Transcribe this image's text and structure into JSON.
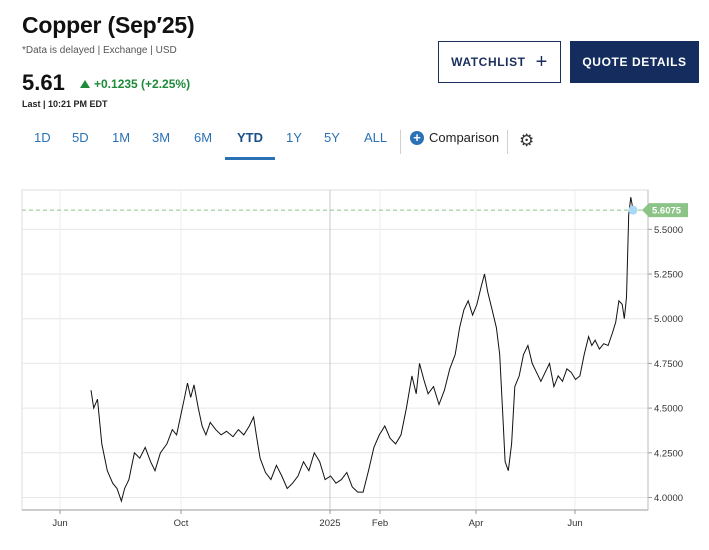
{
  "header": {
    "title": "Copper (Sep′25)",
    "subtitle": "*Data is delayed | Exchange | USD",
    "price": "5.61",
    "change": "+0.1235 (+2.25%)",
    "last_time": "Last | 10:21 PM EDT"
  },
  "buttons": {
    "watchlist": "WATCHLIST",
    "quote_details": "QUOTE DETAILS"
  },
  "tabs": [
    "1D",
    "5D",
    "1M",
    "3M",
    "6M",
    "YTD",
    "1Y",
    "5Y",
    "ALL"
  ],
  "active_tab": "YTD",
  "comparison_label": "Comparison",
  "colors": {
    "up": "#1e8a3a",
    "accent": "#2a72b5",
    "navy": "#142d5e",
    "last_badge": "#8cc487",
    "dot": "#a9d8f5"
  },
  "chart_data": {
    "type": "line",
    "x_ticks": [
      "Jun",
      "Oct",
      "2025",
      "Feb",
      "Apr",
      "Jun"
    ],
    "y_ticks": [
      "4.0000",
      "4.2500",
      "4.5000",
      "4.7500",
      "5.0000",
      "5.2500",
      "5.5000"
    ],
    "ylim": [
      3.93,
      5.72
    ],
    "last_value": "5.6075",
    "grid": true,
    "series": [
      {
        "values": [
          [
            0.0,
            4.6
          ],
          [
            0.005,
            4.5
          ],
          [
            0.012,
            4.55
          ],
          [
            0.02,
            4.3
          ],
          [
            0.03,
            4.15
          ],
          [
            0.04,
            4.08
          ],
          [
            0.048,
            4.05
          ],
          [
            0.056,
            3.98
          ],
          [
            0.062,
            4.05
          ],
          [
            0.07,
            4.1
          ],
          [
            0.08,
            4.25
          ],
          [
            0.09,
            4.22
          ],
          [
            0.1,
            4.28
          ],
          [
            0.11,
            4.2
          ],
          [
            0.118,
            4.15
          ],
          [
            0.128,
            4.25
          ],
          [
            0.14,
            4.3
          ],
          [
            0.15,
            4.38
          ],
          [
            0.158,
            4.35
          ],
          [
            0.165,
            4.45
          ],
          [
            0.172,
            4.55
          ],
          [
            0.178,
            4.64
          ],
          [
            0.184,
            4.56
          ],
          [
            0.19,
            4.63
          ],
          [
            0.198,
            4.5
          ],
          [
            0.205,
            4.4
          ],
          [
            0.212,
            4.35
          ],
          [
            0.22,
            4.42
          ],
          [
            0.23,
            4.38
          ],
          [
            0.24,
            4.35
          ],
          [
            0.25,
            4.37
          ],
          [
            0.262,
            4.34
          ],
          [
            0.272,
            4.38
          ],
          [
            0.282,
            4.35
          ],
          [
            0.292,
            4.4
          ],
          [
            0.3,
            4.45
          ],
          [
            0.305,
            4.35
          ],
          [
            0.312,
            4.22
          ],
          [
            0.322,
            4.14
          ],
          [
            0.332,
            4.1
          ],
          [
            0.342,
            4.18
          ],
          [
            0.352,
            4.12
          ],
          [
            0.362,
            4.05
          ],
          [
            0.372,
            4.08
          ],
          [
            0.382,
            4.12
          ],
          [
            0.392,
            4.2
          ],
          [
            0.402,
            4.15
          ],
          [
            0.412,
            4.25
          ],
          [
            0.422,
            4.2
          ],
          [
            0.432,
            4.1
          ],
          [
            0.442,
            4.12
          ],
          [
            0.452,
            4.08
          ],
          [
            0.462,
            4.1
          ],
          [
            0.472,
            4.14
          ],
          [
            0.482,
            4.06
          ],
          [
            0.492,
            4.03
          ],
          [
            0.502,
            4.03
          ],
          [
            0.512,
            4.15
          ],
          [
            0.522,
            4.28
          ],
          [
            0.532,
            4.35
          ],
          [
            0.542,
            4.4
          ],
          [
            0.552,
            4.33
          ],
          [
            0.562,
            4.3
          ],
          [
            0.572,
            4.35
          ],
          [
            0.582,
            4.5
          ],
          [
            0.592,
            4.68
          ],
          [
            0.6,
            4.58
          ],
          [
            0.606,
            4.75
          ],
          [
            0.614,
            4.66
          ],
          [
            0.622,
            4.58
          ],
          [
            0.632,
            4.62
          ],
          [
            0.642,
            4.52
          ],
          [
            0.652,
            4.6
          ],
          [
            0.662,
            4.72
          ],
          [
            0.672,
            4.8
          ],
          [
            0.68,
            4.95
          ],
          [
            0.688,
            5.05
          ],
          [
            0.696,
            5.1
          ],
          [
            0.704,
            5.02
          ],
          [
            0.712,
            5.08
          ],
          [
            0.72,
            5.18
          ],
          [
            0.726,
            5.25
          ],
          [
            0.732,
            5.15
          ],
          [
            0.74,
            5.05
          ],
          [
            0.748,
            4.95
          ],
          [
            0.754,
            4.8
          ],
          [
            0.76,
            4.45
          ],
          [
            0.764,
            4.2
          ],
          [
            0.77,
            4.15
          ],
          [
            0.776,
            4.3
          ],
          [
            0.782,
            4.62
          ],
          [
            0.79,
            4.68
          ],
          [
            0.798,
            4.8
          ],
          [
            0.806,
            4.85
          ],
          [
            0.814,
            4.75
          ],
          [
            0.822,
            4.7
          ],
          [
            0.83,
            4.65
          ],
          [
            0.838,
            4.7
          ],
          [
            0.846,
            4.75
          ],
          [
            0.854,
            4.62
          ],
          [
            0.862,
            4.68
          ],
          [
            0.87,
            4.65
          ],
          [
            0.878,
            4.72
          ],
          [
            0.886,
            4.7
          ],
          [
            0.894,
            4.66
          ],
          [
            0.902,
            4.68
          ],
          [
            0.91,
            4.8
          ],
          [
            0.918,
            4.9
          ],
          [
            0.924,
            4.85
          ],
          [
            0.93,
            4.88
          ],
          [
            0.938,
            4.83
          ],
          [
            0.946,
            4.86
          ],
          [
            0.954,
            4.85
          ],
          [
            0.962,
            4.92
          ],
          [
            0.968,
            4.98
          ],
          [
            0.974,
            5.1
          ],
          [
            0.98,
            5.08
          ],
          [
            0.984,
            5.0
          ],
          [
            0.988,
            5.12
          ],
          [
            0.992,
            5.58
          ],
          [
            0.996,
            5.68
          ],
          [
            1.0,
            5.61
          ]
        ]
      }
    ]
  }
}
